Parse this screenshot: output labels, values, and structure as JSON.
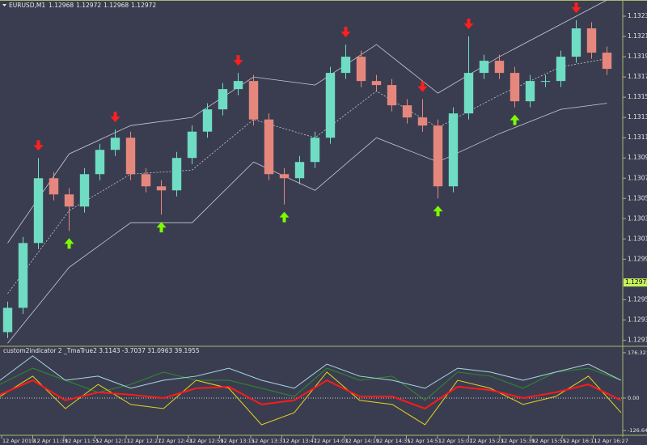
{
  "chart_data": [
    {
      "type": "candlestick",
      "symbol": "EURUSD,M1",
      "ohlc": [
        1.12968,
        1.12972,
        1.12968,
        1.12972
      ],
      "open": [
        1.12923,
        1.12947,
        1.13011,
        1.13075,
        1.13059,
        1.13047,
        1.13079,
        1.13103,
        1.13115,
        1.13079,
        1.13067,
        1.13063,
        1.13095,
        1.13121,
        1.13143,
        1.13163,
        1.13171,
        1.13133,
        1.13079,
        1.13075,
        1.13091,
        1.13115,
        1.13179,
        1.13195,
        1.13171,
        1.13167,
        1.13147,
        1.13135,
        1.13127,
        1.13067,
        1.13139,
        1.13179,
        1.13191,
        1.13179,
        1.13151,
        1.13171,
        1.13171,
        1.13195,
        1.13223,
        1.13199
      ],
      "high": [
        1.12953,
        1.13017,
        1.13095,
        1.13081,
        1.13065,
        1.13085,
        1.13109,
        1.13123,
        1.13121,
        1.13085,
        1.13073,
        1.13101,
        1.13127,
        1.13149,
        1.13169,
        1.13179,
        1.13177,
        1.13139,
        1.13085,
        1.13097,
        1.13121,
        1.13185,
        1.13207,
        1.13201,
        1.13177,
        1.13173,
        1.13153,
        1.13153,
        1.13133,
        1.13145,
        1.13215,
        1.13197,
        1.13197,
        1.13185,
        1.13177,
        1.13177,
        1.13201,
        1.13231,
        1.13229,
        1.13205
      ],
      "low": [
        1.12917,
        1.12941,
        1.13005,
        1.13053,
        1.13023,
        1.13041,
        1.13073,
        1.13097,
        1.13073,
        1.13061,
        1.13039,
        1.13057,
        1.13089,
        1.13115,
        1.13137,
        1.13157,
        1.13127,
        1.13073,
        1.13049,
        1.13069,
        1.13085,
        1.13109,
        1.13173,
        1.13165,
        1.13161,
        1.13141,
        1.13129,
        1.13121,
        1.13055,
        1.13061,
        1.13133,
        1.13173,
        1.13173,
        1.13145,
        1.13145,
        1.13165,
        1.13165,
        1.13189,
        1.13193,
        1.13177
      ],
      "close": [
        1.12947,
        1.13011,
        1.13075,
        1.13059,
        1.13047,
        1.13079,
        1.13103,
        1.13115,
        1.13079,
        1.13067,
        1.13063,
        1.13095,
        1.13121,
        1.13143,
        1.13163,
        1.13171,
        1.13133,
        1.13079,
        1.13075,
        1.13091,
        1.13115,
        1.13179,
        1.13195,
        1.13171,
        1.13167,
        1.13147,
        1.13135,
        1.13127,
        1.13067,
        1.13139,
        1.13179,
        1.13191,
        1.13179,
        1.13151,
        1.13171,
        1.13171,
        1.13195,
        1.13223,
        1.13199,
        1.13183
      ],
      "bands": {
        "x": [
          0,
          4,
          8,
          12,
          16,
          20,
          24,
          28,
          32,
          36,
          39
        ],
        "upper": [
          1.13011,
          1.13099,
          1.13127,
          1.13135,
          1.13175,
          1.13167,
          1.13207,
          1.13159,
          1.13195,
          1.13227,
          1.13251
        ],
        "middle": [
          1.12961,
          1.13043,
          1.13079,
          1.13083,
          1.13133,
          1.13115,
          1.13161,
          1.13125,
          1.13157,
          1.13185,
          1.13193
        ],
        "lower": [
          1.12912,
          1.12987,
          1.13031,
          1.13031,
          1.13091,
          1.13063,
          1.13115,
          1.13091,
          1.13119,
          1.13143,
          1.13149
        ]
      },
      "signals": {
        "sell": [
          2,
          7,
          15,
          22,
          27,
          30,
          37
        ],
        "buy": [
          4,
          10,
          18,
          28,
          33
        ]
      },
      "bid": 1.12972,
      "ylim": [
        1.12909,
        1.13251
      ],
      "yticks": [
        1.13235,
        1.13215,
        1.13195,
        1.13175,
        1.13155,
        1.13135,
        1.13115,
        1.13095,
        1.13075,
        1.13055,
        1.13035,
        1.13015,
        1.12995,
        1.12955,
        1.12935,
        1.12915
      ],
      "colors": {
        "bull": "#6fdcc4",
        "bear": "#e6877e",
        "sell": "#ff1f1f",
        "buy": "#7cfc00",
        "band": "#c9c9d2",
        "bid": "#c8f25a"
      },
      "x_labels": [
        "12 Apr 2019",
        "12 Apr 11:39",
        "12 Apr 11:55",
        "12 Apr 12:11",
        "12 Apr 12:27",
        "12 Apr 12:43",
        "12 Apr 12:59",
        "12 Apr 13:15",
        "12 Apr 13:31",
        "12 Apr 13:47",
        "12 Apr 14:03",
        "12 Apr 14:19",
        "12 Apr 14:35",
        "12 Apr 14:51",
        "12 Apr 15:07",
        "12 Apr 15:23",
        "12 Apr 15:39",
        "12 Apr 15:55",
        "12 Apr 16:11",
        "12 Apr 16:27"
      ]
    },
    {
      "type": "line",
      "title": "custom2indicator 2 _TmaTrue2 3.1143 -3.7037 31.0963 39.1955",
      "ylim": [
        -145,
        195
      ],
      "yticks": [
        176.3214,
        {
          "value": 0,
          "label": "0.00"
        },
        -126.6494
      ],
      "series": [
        {
          "color": "#2e8b2e",
          "values": [
            53,
            116,
            69,
            22,
            53,
            101,
            69,
            69,
            38,
            6,
            116,
            69,
            85,
            -9,
            101,
            85,
            38,
            101,
            116,
            69
          ]
        },
        {
          "color": "#a8d8e0",
          "values": [
            69,
            164,
            69,
            85,
            38,
            69,
            85,
            116,
            69,
            38,
            132,
            85,
            69,
            38,
            116,
            101,
            69,
            101,
            132,
            69
          ]
        },
        {
          "color": "#e6d21e",
          "values": [
            6,
            85,
            -41,
            53,
            -25,
            -41,
            69,
            38,
            -104,
            -57,
            101,
            -9,
            -25,
            -104,
            69,
            38,
            -25,
            6,
            85,
            -57
          ]
        },
        {
          "color": "#ff1a1a",
          "values": [
            13,
            69,
            -9,
            22,
            13,
            0,
            38,
            44,
            -25,
            -9,
            69,
            6,
            6,
            -41,
            44,
            31,
            0,
            22,
            53,
            -9
          ]
        }
      ]
    }
  ]
}
